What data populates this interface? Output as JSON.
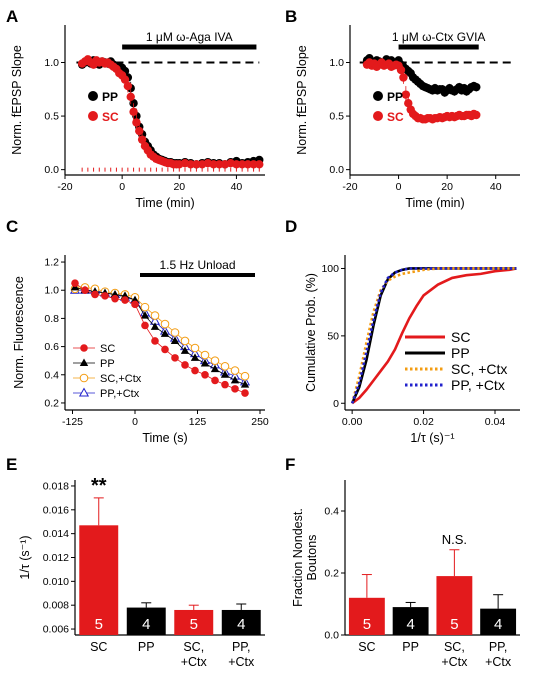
{
  "chart_data": [
    {
      "panel": "A",
      "type": "scatter",
      "xlabel": "Time (min)",
      "ylabel": "Norm. fEPSP Slope",
      "xlim": [
        -20,
        50
      ],
      "ylim": [
        -0.05,
        1.35
      ],
      "xticks": [
        -20,
        0,
        20,
        40
      ],
      "yticks": [
        0.0,
        0.5,
        1.0
      ],
      "drug_label": "1 μM ω-Aga IVA",
      "drug_bar": [
        0,
        47
      ],
      "baseline": 1.0,
      "series": [
        {
          "name": "PP",
          "color": "#000000",
          "x": [
            -14,
            -13,
            -12,
            -11,
            -10,
            -9,
            -8,
            -7,
            -6,
            -5,
            -4,
            -3,
            -2,
            -1,
            0,
            1,
            2,
            3,
            4,
            5,
            6,
            7,
            8,
            9,
            10,
            11,
            12,
            13,
            14,
            15,
            16,
            17,
            18,
            19,
            20,
            22,
            24,
            26,
            28,
            30,
            32,
            34,
            36,
            38,
            40,
            42,
            44,
            46,
            48
          ],
          "y": [
            0.98,
            1.0,
            1.01,
            0.99,
            1.02,
            1.0,
            0.98,
            1.01,
            1.0,
            0.99,
            1.01,
            0.98,
            0.97,
            0.96,
            0.95,
            0.92,
            0.86,
            0.76,
            0.62,
            0.5,
            0.4,
            0.33,
            0.26,
            0.22,
            0.18,
            0.14,
            0.12,
            0.1,
            0.09,
            0.08,
            0.07,
            0.07,
            0.06,
            0.06,
            0.06,
            0.07,
            0.06,
            0.05,
            0.06,
            0.07,
            0.06,
            0.06,
            0.05,
            0.07,
            0.08,
            0.06,
            0.07,
            0.08,
            0.09
          ],
          "err": [
            0.03,
            0.03,
            0.03,
            0.03,
            0.03,
            0.03,
            0.03,
            0.03,
            0.03,
            0.03,
            0.03,
            0.03,
            0.03,
            0.03,
            0.04,
            0.04,
            0.05,
            0.06,
            0.06,
            0.07,
            0.07,
            0.06,
            0.06,
            0.05,
            0.05,
            0.04,
            0.04,
            0.04,
            0.04,
            0.04,
            0.03,
            0.03,
            0.03,
            0.03,
            0.03,
            0.03,
            0.03,
            0.03,
            0.03,
            0.03,
            0.03,
            0.03,
            0.03,
            0.03,
            0.03,
            0.03,
            0.03,
            0.03,
            0.03
          ]
        },
        {
          "name": "SC",
          "color": "#e31a1c",
          "x": [
            -14,
            -13,
            -12,
            -11,
            -10,
            -9,
            -8,
            -7,
            -6,
            -5,
            -4,
            -3,
            -2,
            -1,
            0,
            1,
            2,
            3,
            4,
            5,
            6,
            7,
            8,
            9,
            10,
            11,
            12,
            13,
            14,
            15,
            16,
            17,
            18,
            19,
            20,
            22,
            24,
            26,
            28,
            30,
            32,
            34,
            36,
            38,
            40,
            42,
            44,
            46,
            48
          ],
          "y": [
            0.99,
            1.01,
            1.03,
            1.0,
            0.98,
            1.02,
            1.0,
            1.01,
            0.99,
            1.0,
            0.98,
            0.96,
            0.94,
            0.9,
            0.88,
            0.84,
            0.78,
            0.68,
            0.54,
            0.44,
            0.36,
            0.28,
            0.22,
            0.18,
            0.14,
            0.12,
            0.1,
            0.09,
            0.08,
            0.07,
            0.06,
            0.06,
            0.05,
            0.05,
            0.05,
            0.06,
            0.05,
            0.05,
            0.05,
            0.06,
            0.05,
            0.05,
            0.05,
            0.06,
            0.05,
            0.05,
            0.05,
            0.05,
            0.05
          ],
          "err": [
            0.03,
            0.03,
            0.03,
            0.03,
            0.03,
            0.03,
            0.03,
            0.03,
            0.03,
            0.03,
            0.03,
            0.03,
            0.03,
            0.04,
            0.04,
            0.05,
            0.06,
            0.07,
            0.08,
            0.08,
            0.07,
            0.07,
            0.06,
            0.05,
            0.05,
            0.05,
            0.04,
            0.04,
            0.04,
            0.04,
            0.03,
            0.03,
            0.03,
            0.03,
            0.03,
            0.03,
            0.03,
            0.03,
            0.03,
            0.03,
            0.03,
            0.03,
            0.03,
            0.03,
            0.03,
            0.03,
            0.03,
            0.03,
            0.03
          ]
        }
      ],
      "legend": [
        "PP",
        "SC"
      ]
    },
    {
      "panel": "B",
      "type": "scatter",
      "xlabel": "Time (min)",
      "ylabel": "Norm. fEPSP Slope",
      "xlim": [
        -20,
        50
      ],
      "ylim": [
        -0.05,
        1.35
      ],
      "xticks": [
        -20,
        0,
        20,
        40
      ],
      "yticks": [
        0.0,
        0.5,
        1.0
      ],
      "drug_label": "1 μM ω-Ctx GVIA",
      "drug_bar": [
        0,
        33
      ],
      "baseline": 1.0,
      "series": [
        {
          "name": "PP",
          "color": "#000000",
          "x": [
            -13,
            -12,
            -11,
            -10,
            -9,
            -8,
            -7,
            -6,
            -5,
            -4,
            -3,
            -2,
            -1,
            0,
            1,
            2,
            3,
            4,
            5,
            6,
            7,
            8,
            9,
            10,
            11,
            12,
            13,
            14,
            15,
            16,
            17,
            18,
            19,
            20,
            21,
            22,
            23,
            24,
            25,
            26,
            27,
            28,
            29,
            30,
            31,
            32
          ],
          "y": [
            1.02,
            1.04,
            1.0,
            0.98,
            1.02,
            1.01,
            0.99,
            1.0,
            1.03,
            0.98,
            1.02,
            1.0,
            0.99,
            1.02,
            0.98,
            0.96,
            0.94,
            0.92,
            0.9,
            0.86,
            0.84,
            0.82,
            0.8,
            0.78,
            0.77,
            0.76,
            0.75,
            0.74,
            0.76,
            0.74,
            0.75,
            0.75,
            0.72,
            0.74,
            0.76,
            0.74,
            0.73,
            0.75,
            0.77,
            0.74,
            0.76,
            0.73,
            0.75,
            0.77,
            0.78,
            0.77
          ],
          "err": [
            0.03,
            0.03,
            0.03,
            0.03,
            0.03,
            0.03,
            0.03,
            0.03,
            0.03,
            0.03,
            0.03,
            0.03,
            0.03,
            0.03,
            0.04,
            0.04,
            0.04,
            0.05,
            0.05,
            0.05,
            0.05,
            0.05,
            0.05,
            0.04,
            0.04,
            0.04,
            0.04,
            0.04,
            0.04,
            0.04,
            0.04,
            0.04,
            0.04,
            0.04,
            0.04,
            0.04,
            0.04,
            0.04,
            0.04,
            0.04,
            0.04,
            0.04,
            0.04,
            0.04,
            0.04,
            0.04
          ]
        },
        {
          "name": "SC",
          "color": "#e31a1c",
          "x": [
            -13,
            -12,
            -11,
            -10,
            -9,
            -8,
            -7,
            -6,
            -5,
            -4,
            -3,
            -2,
            -1,
            0,
            1,
            2,
            3,
            4,
            5,
            6,
            7,
            8,
            9,
            10,
            11,
            12,
            13,
            14,
            15,
            16,
            17,
            18,
            19,
            20,
            21,
            22,
            23,
            24,
            25,
            26,
            27,
            28,
            29,
            30,
            31,
            32
          ],
          "y": [
            0.98,
            1.0,
            0.97,
            0.99,
            0.96,
            0.98,
            1.0,
            0.97,
            0.98,
            0.99,
            0.96,
            0.97,
            0.98,
            0.97,
            0.93,
            0.86,
            0.7,
            0.62,
            0.56,
            0.52,
            0.5,
            0.48,
            0.48,
            0.47,
            0.47,
            0.48,
            0.48,
            0.47,
            0.48,
            0.48,
            0.49,
            0.48,
            0.49,
            0.5,
            0.49,
            0.5,
            0.49,
            0.5,
            0.51,
            0.5,
            0.5,
            0.51,
            0.51,
            0.5,
            0.52,
            0.51
          ],
          "err": [
            0.03,
            0.03,
            0.03,
            0.03,
            0.03,
            0.03,
            0.03,
            0.03,
            0.03,
            0.03,
            0.03,
            0.03,
            0.03,
            0.03,
            0.04,
            0.06,
            0.08,
            0.08,
            0.06,
            0.05,
            0.04,
            0.04,
            0.04,
            0.03,
            0.03,
            0.03,
            0.03,
            0.03,
            0.03,
            0.03,
            0.03,
            0.03,
            0.03,
            0.03,
            0.03,
            0.03,
            0.03,
            0.03,
            0.03,
            0.03,
            0.03,
            0.03,
            0.03,
            0.03,
            0.03,
            0.03
          ]
        }
      ],
      "legend": [
        "PP",
        "SC"
      ]
    },
    {
      "panel": "C",
      "type": "line",
      "xlabel": "Time (s)",
      "ylabel": "Norm. Fluorescence",
      "xlim": [
        -140,
        260
      ],
      "ylim": [
        0.15,
        1.25
      ],
      "xticks": [
        -125,
        0,
        125,
        250
      ],
      "yticks": [
        0.2,
        0.4,
        0.6,
        0.8,
        1.0,
        1.2
      ],
      "stim_label": "1.5 Hz Unload",
      "stim_bar": [
        10,
        240
      ],
      "x": [
        -120,
        -100,
        -80,
        -60,
        -40,
        -20,
        0,
        20,
        40,
        60,
        80,
        100,
        120,
        140,
        160,
        180,
        200,
        220
      ],
      "series": [
        {
          "name": "SC",
          "color": "#e31a1c",
          "marker": "filled-circle",
          "y": [
            1.05,
            1.0,
            0.97,
            0.96,
            0.94,
            0.93,
            0.9,
            0.75,
            0.64,
            0.58,
            0.52,
            0.47,
            0.43,
            0.4,
            0.36,
            0.33,
            0.3,
            0.27
          ]
        },
        {
          "name": "PP",
          "color": "#000000",
          "marker": "filled-triangle",
          "y": [
            1.02,
            1.0,
            0.99,
            0.98,
            0.97,
            0.96,
            0.93,
            0.82,
            0.74,
            0.69,
            0.64,
            0.57,
            0.52,
            0.48,
            0.44,
            0.4,
            0.36,
            0.33
          ]
        },
        {
          "name": "SC,+Ctx",
          "color": "#f39c12",
          "marker": "open-circle",
          "y": [
            1.01,
            1.02,
            1.01,
            0.99,
            0.98,
            0.97,
            0.95,
            0.88,
            0.82,
            0.76,
            0.7,
            0.64,
            0.59,
            0.54,
            0.5,
            0.46,
            0.43,
            0.39
          ]
        },
        {
          "name": "PP,+Ctx",
          "color": "#2222cc",
          "marker": "open-triangle",
          "y": [
            1.0,
            1.0,
            1.0,
            0.98,
            0.97,
            0.95,
            0.93,
            0.84,
            0.78,
            0.71,
            0.66,
            0.6,
            0.55,
            0.5,
            0.47,
            0.42,
            0.39,
            0.35
          ]
        }
      ],
      "legend": [
        "SC",
        "PP",
        "SC,+Ctx",
        "PP,+Ctx"
      ]
    },
    {
      "panel": "D",
      "type": "line",
      "xlabel": "1/τ (s)⁻¹",
      "ylabel": "Cumulative Prob. (%)",
      "xlim": [
        -0.002,
        0.047
      ],
      "ylim": [
        -5,
        110
      ],
      "xticks": [
        0.0,
        0.02,
        0.04
      ],
      "xtick_labels": [
        "0.00",
        "0.02",
        "0.04"
      ],
      "yticks": [
        0,
        50,
        100
      ],
      "series": [
        {
          "name": "SC",
          "color": "#e31a1c",
          "style": "solid",
          "x": [
            0,
            0.002,
            0.004,
            0.006,
            0.008,
            0.01,
            0.012,
            0.014,
            0.016,
            0.018,
            0.02,
            0.024,
            0.028,
            0.032,
            0.036,
            0.04,
            0.044,
            0.046
          ],
          "y": [
            0,
            4,
            10,
            17,
            24,
            31,
            40,
            52,
            63,
            72,
            80,
            88,
            93,
            95,
            96,
            98,
            99,
            100
          ]
        },
        {
          "name": "PP",
          "color": "#000000",
          "style": "solid",
          "x": [
            0,
            0.002,
            0.004,
            0.006,
            0.008,
            0.01,
            0.012,
            0.014,
            0.016,
            0.018,
            0.02,
            0.024,
            0.028,
            0.032,
            0.04,
            0.046
          ],
          "y": [
            0,
            12,
            32,
            58,
            80,
            92,
            97,
            99,
            100,
            100,
            100,
            100,
            100,
            100,
            100,
            100
          ]
        },
        {
          "name": "SC, +Ctx",
          "color": "#f39c12",
          "style": "dotted",
          "x": [
            0,
            0.002,
            0.004,
            0.006,
            0.008,
            0.01,
            0.012,
            0.014,
            0.016,
            0.018,
            0.02,
            0.024,
            0.028,
            0.032,
            0.04,
            0.046
          ],
          "y": [
            0,
            20,
            45,
            68,
            84,
            91,
            94,
            96,
            97,
            98,
            99,
            100,
            100,
            100,
            100,
            100
          ]
        },
        {
          "name": "PP, +Ctx",
          "color": "#2222cc",
          "style": "dotted",
          "x": [
            0,
            0.002,
            0.004,
            0.006,
            0.008,
            0.01,
            0.012,
            0.014,
            0.016,
            0.018,
            0.02,
            0.024,
            0.028,
            0.032,
            0.04,
            0.046
          ],
          "y": [
            0,
            15,
            38,
            62,
            82,
            93,
            97,
            99,
            100,
            100,
            100,
            100,
            100,
            100,
            100,
            100
          ]
        }
      ],
      "legend": [
        "SC",
        "PP",
        "SC, +Ctx",
        "PP, +Ctx"
      ]
    },
    {
      "panel": "E",
      "type": "bar",
      "ylabel": "1/τ (s⁻¹)",
      "ylim": [
        0.0055,
        0.0185
      ],
      "yticks": [
        0.006,
        0.008,
        0.01,
        0.012,
        0.014,
        0.016,
        0.018
      ],
      "ytick_labels": [
        "0.006",
        "0.008",
        "0.010",
        "0.012",
        "0.014",
        "0.016",
        "0.018"
      ],
      "categories": [
        "SC",
        "PP",
        "SC,\n+Ctx",
        "PP,\n+Ctx"
      ],
      "values": [
        0.0147,
        0.0078,
        0.0076,
        0.0076
      ],
      "err": [
        0.0023,
        0.0004,
        0.0004,
        0.0005
      ],
      "colors": [
        "#e31a1c",
        "#000000",
        "#e31a1c",
        "#000000"
      ],
      "n_labels": [
        "5",
        "4",
        "5",
        "4"
      ],
      "significance": {
        "bar": 0,
        "label": "**"
      }
    },
    {
      "panel": "F",
      "type": "bar",
      "ylabel": "Fraction Nondest.\nBoutons",
      "ylim": [
        0,
        0.5
      ],
      "yticks": [
        0.0,
        0.2,
        0.4
      ],
      "ytick_labels": [
        "0.0",
        "0.2",
        "0.4"
      ],
      "categories": [
        "SC",
        "PP",
        "SC,\n+Ctx",
        "PP,\n+Ctx"
      ],
      "values": [
        0.12,
        0.09,
        0.19,
        0.085
      ],
      "err": [
        0.075,
        0.015,
        0.085,
        0.045
      ],
      "colors": [
        "#e31a1c",
        "#000000",
        "#e31a1c",
        "#000000"
      ],
      "n_labels": [
        "5",
        "4",
        "5",
        "4"
      ],
      "significance": {
        "bar": 2,
        "label": "N.S."
      }
    }
  ]
}
